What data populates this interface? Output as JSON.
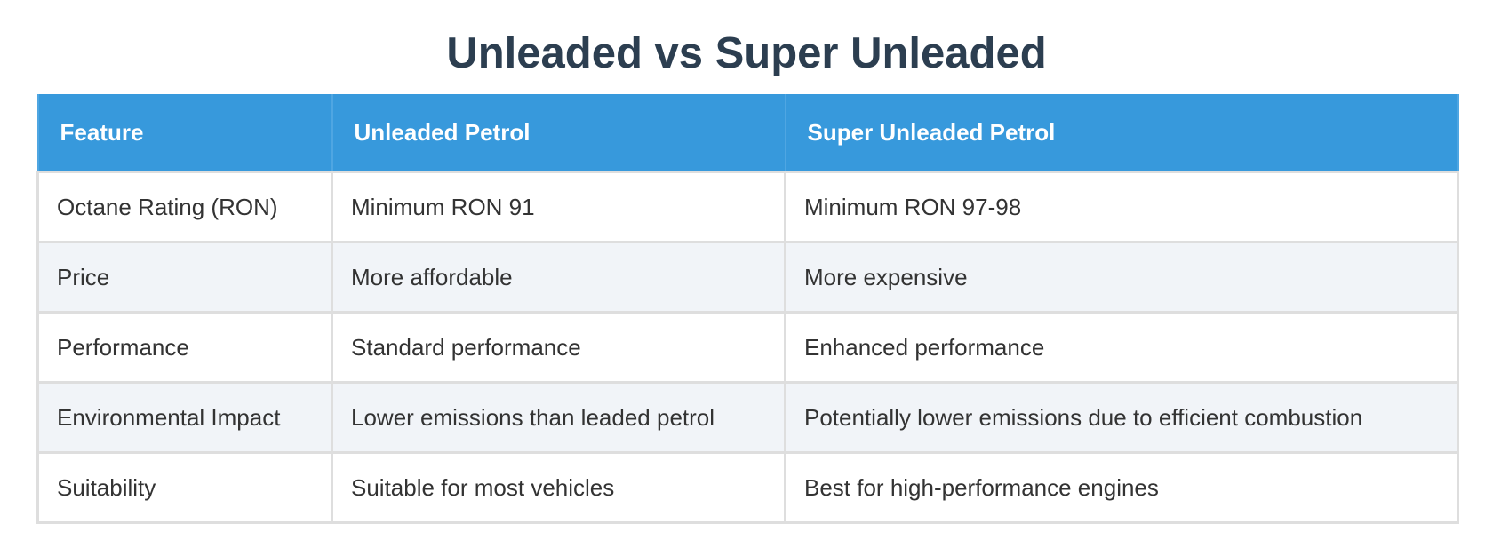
{
  "title": "Unleaded vs Super Unleaded",
  "table": {
    "headers": [
      "Feature",
      "Unleaded Petrol",
      "Super Unleaded Petrol"
    ],
    "rows": [
      [
        "Octane Rating (RON)",
        "Minimum RON 91",
        "Minimum RON 97-98"
      ],
      [
        "Price",
        "More affordable",
        "More expensive"
      ],
      [
        "Performance",
        "Standard performance",
        "Enhanced performance"
      ],
      [
        "Environmental Impact",
        "Lower emissions than leaded petrol",
        "Potentially lower emissions due to efficient combustion"
      ],
      [
        "Suitability",
        "Suitable for most vehicles",
        "Best for high-performance engines"
      ]
    ]
  },
  "colors": {
    "title_text": "#2c3e50",
    "header_background": "#3799dc",
    "header_text": "#ffffff",
    "alt_row_background": "#f1f4f8",
    "body_text": "#333333",
    "grid_line": "#dedede"
  }
}
